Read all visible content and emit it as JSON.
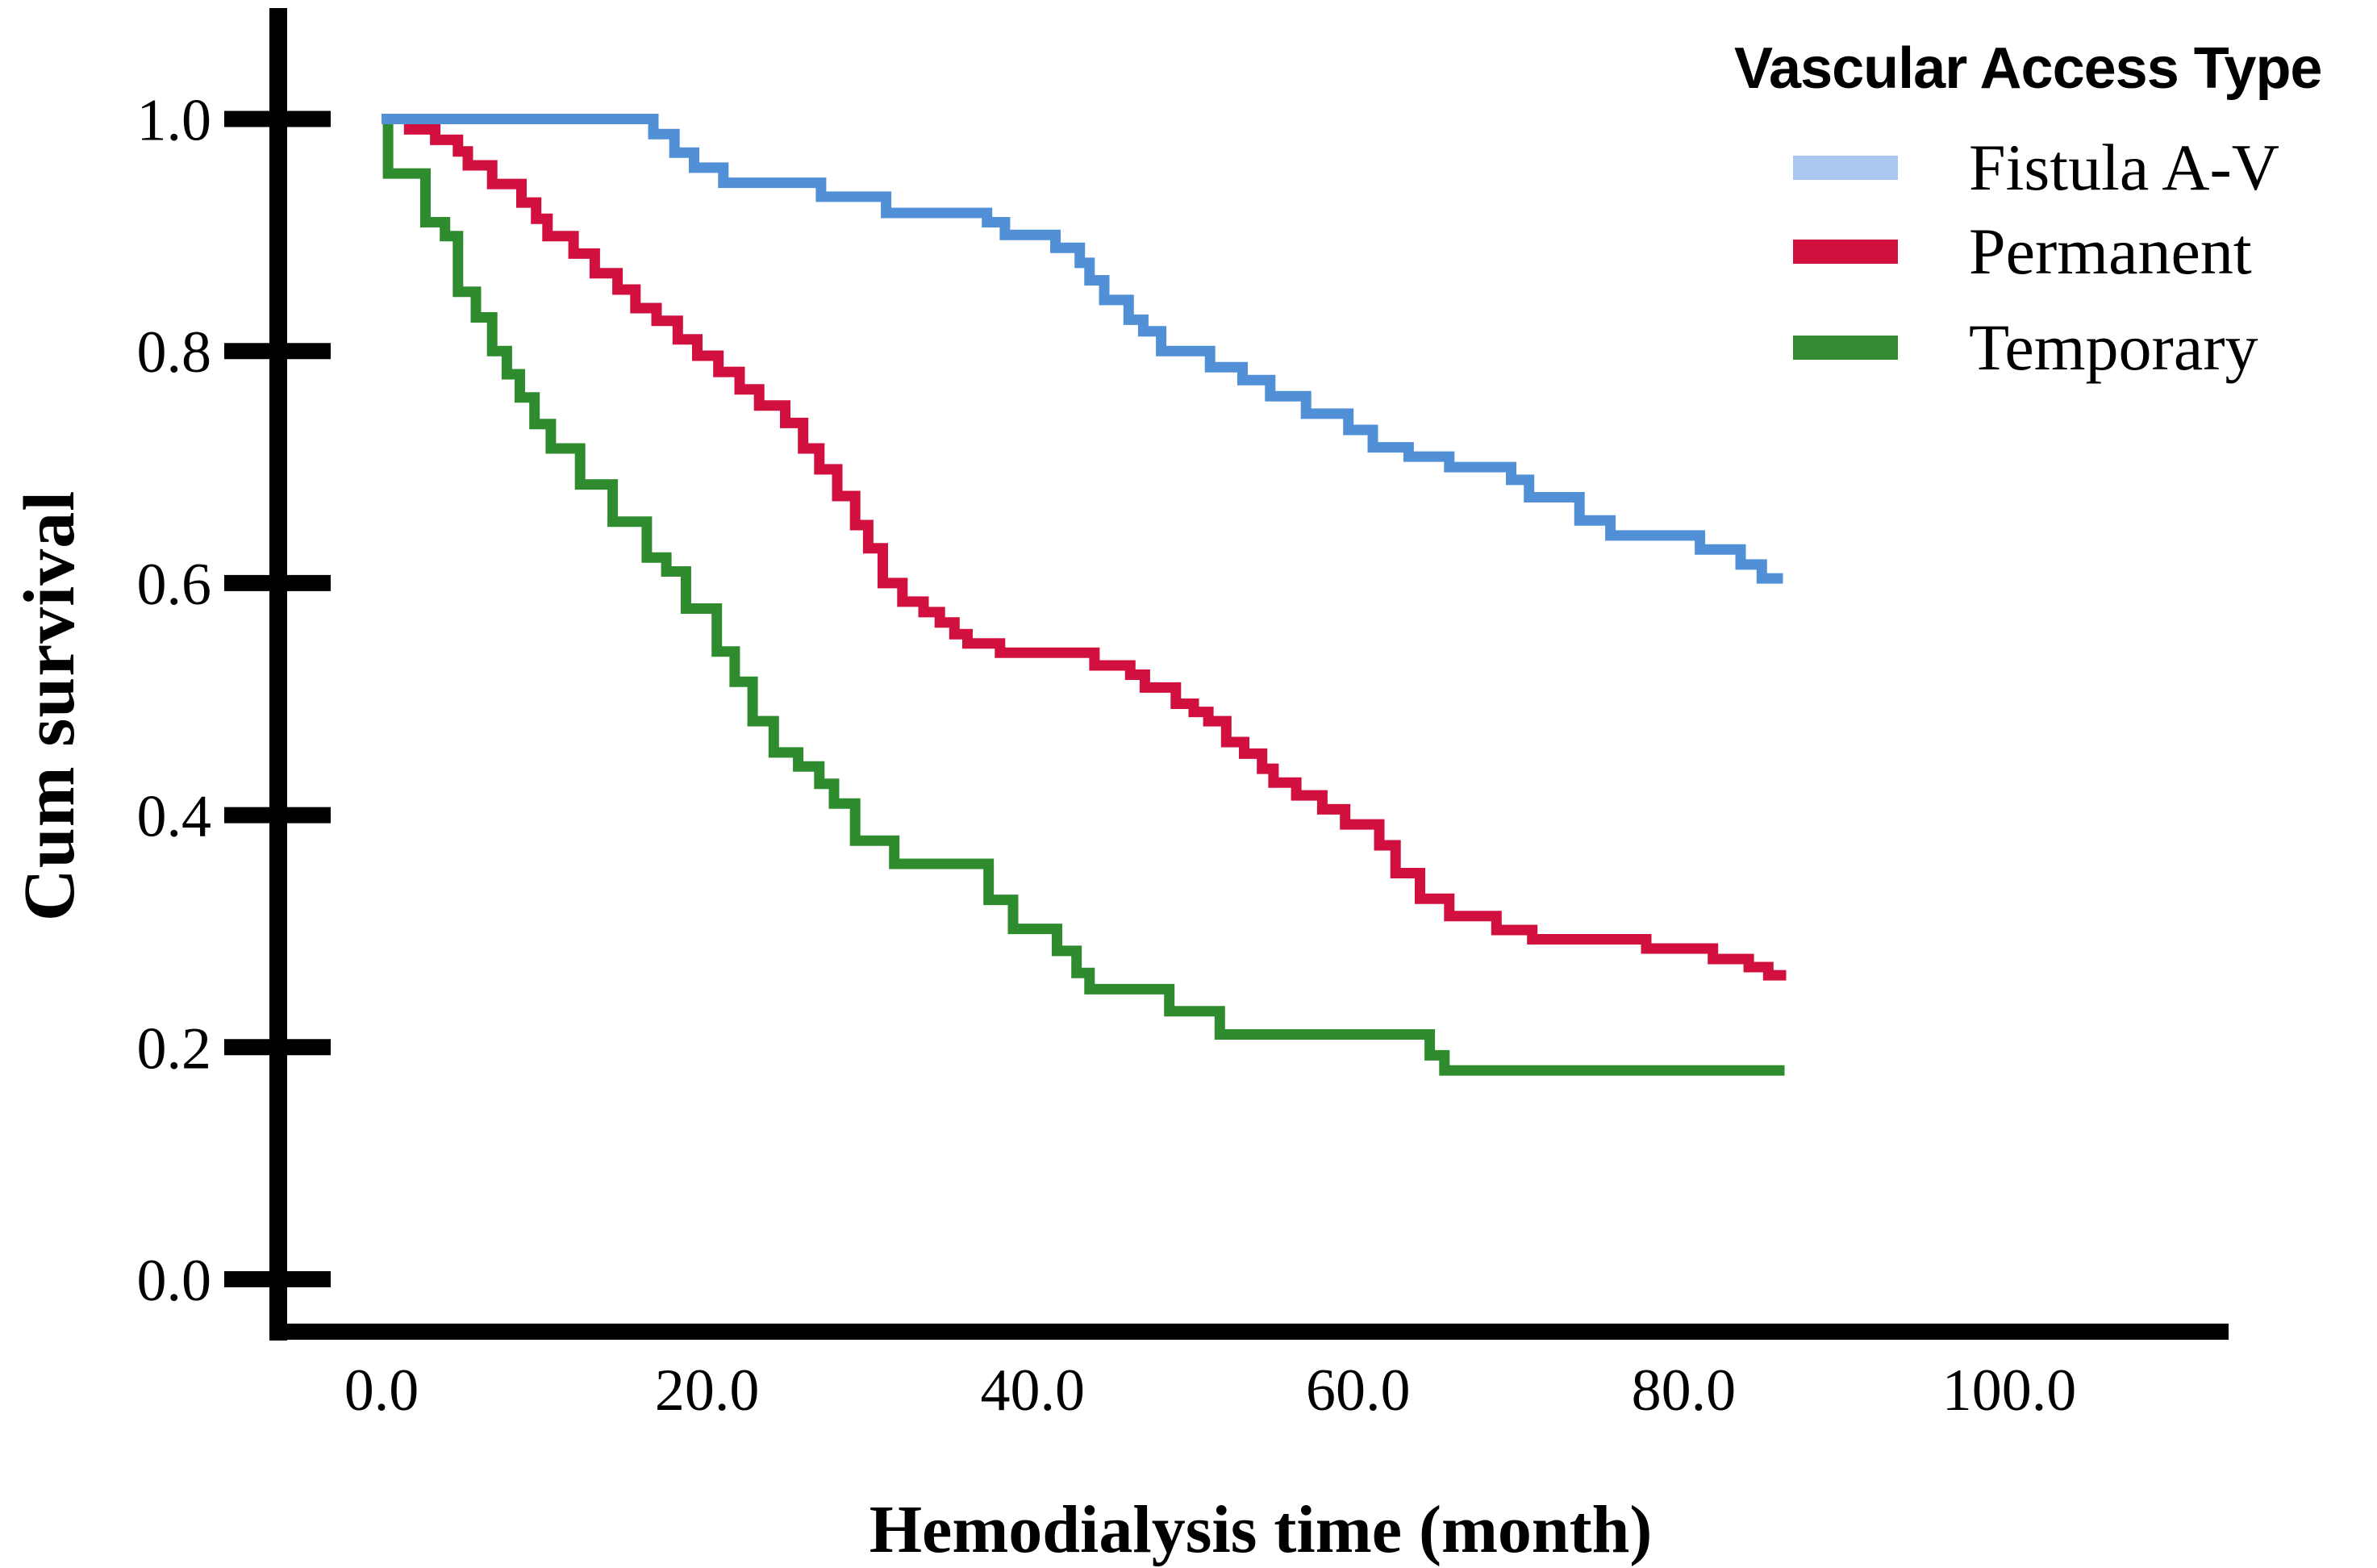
{
  "figure": {
    "background": "#ffffff",
    "legend": {
      "title": "Vascular Access Type",
      "entries": [
        {
          "label": "Fistula A-V",
          "swatch_color": "#a8c8ef"
        },
        {
          "label": "Permanent",
          "swatch_color": "#d0103e"
        },
        {
          "label": "Temporary",
          "swatch_color": "#338a33"
        }
      ]
    }
  },
  "chart_data": {
    "type": "line",
    "subtype": "kaplan-meier-step",
    "title": "",
    "xlabel": "Hemodialysis time (month)",
    "ylabel": "Cum survival",
    "xlim": [
      0,
      100
    ],
    "ylim": [
      0.0,
      1.0
    ],
    "grid": false,
    "legend_position": "top-right",
    "x_ticks": [
      {
        "value": 0,
        "label": "0.0"
      },
      {
        "value": 20,
        "label": "20.0"
      },
      {
        "value": 40,
        "label": "40.0"
      },
      {
        "value": 60,
        "label": "60.0"
      },
      {
        "value": 80,
        "label": "80.0"
      },
      {
        "value": 100,
        "label": "100.0"
      }
    ],
    "y_ticks": [
      {
        "value": 1.0,
        "label": "1.0"
      },
      {
        "value": 0.8,
        "label": "0.8"
      },
      {
        "value": 0.6,
        "label": "0.6"
      },
      {
        "value": 0.4,
        "label": "0.4"
      },
      {
        "value": 0.2,
        "label": "0.2"
      },
      {
        "value": 0.0,
        "label": "0.0"
      }
    ],
    "series": [
      {
        "id": "temporary",
        "name": "Temporary",
        "color": "#2e8b2e",
        "points": [
          [
            0,
            1.0
          ],
          [
            0.4,
            0.953
          ],
          [
            2.7,
            0.911
          ],
          [
            3.9,
            0.899
          ],
          [
            4.7,
            0.851
          ],
          [
            5.8,
            0.829
          ],
          [
            6.8,
            0.8
          ],
          [
            7.7,
            0.78
          ],
          [
            8.5,
            0.76
          ],
          [
            9.4,
            0.737
          ],
          [
            10.4,
            0.716
          ],
          [
            12.2,
            0.685
          ],
          [
            14.2,
            0.653
          ],
          [
            16.3,
            0.622
          ],
          [
            17.5,
            0.61
          ],
          [
            18.7,
            0.578
          ],
          [
            20.6,
            0.541
          ],
          [
            21.7,
            0.515
          ],
          [
            22.8,
            0.481
          ],
          [
            24.1,
            0.454
          ],
          [
            25.6,
            0.442
          ],
          [
            26.9,
            0.427
          ],
          [
            27.8,
            0.41
          ],
          [
            29.1,
            0.378
          ],
          [
            31.5,
            0.358
          ],
          [
            37.3,
            0.327
          ],
          [
            38.8,
            0.302
          ],
          [
            41.5,
            0.283
          ],
          [
            42.7,
            0.264
          ],
          [
            43.5,
            0.25
          ],
          [
            48.4,
            0.231
          ],
          [
            51.5,
            0.211
          ],
          [
            64.4,
            0.193
          ],
          [
            65.3,
            0.18
          ],
          [
            86.2,
            0.18
          ]
        ]
      },
      {
        "id": "permanent",
        "name": "Permanent",
        "color": "#d2103f",
        "points": [
          [
            0,
            1.0
          ],
          [
            1.7,
            0.991
          ],
          [
            3.3,
            0.982
          ],
          [
            4.7,
            0.972
          ],
          [
            5.3,
            0.96
          ],
          [
            6.8,
            0.944
          ],
          [
            8.6,
            0.928
          ],
          [
            9.5,
            0.914
          ],
          [
            10.2,
            0.899
          ],
          [
            11.8,
            0.884
          ],
          [
            13.1,
            0.867
          ],
          [
            14.5,
            0.853
          ],
          [
            15.6,
            0.837
          ],
          [
            16.9,
            0.826
          ],
          [
            18.2,
            0.81
          ],
          [
            19.4,
            0.796
          ],
          [
            20.7,
            0.782
          ],
          [
            22,
            0.767
          ],
          [
            23.2,
            0.753
          ],
          [
            24.8,
            0.738
          ],
          [
            25.9,
            0.716
          ],
          [
            26.9,
            0.698
          ],
          [
            28,
            0.675
          ],
          [
            29.1,
            0.65
          ],
          [
            29.9,
            0.63
          ],
          [
            30.8,
            0.6
          ],
          [
            32,
            0.584
          ],
          [
            33.3,
            0.575
          ],
          [
            34.3,
            0.566
          ],
          [
            35.2,
            0.556
          ],
          [
            36,
            0.548
          ],
          [
            38,
            0.54
          ],
          [
            43.8,
            0.529
          ],
          [
            46,
            0.521
          ],
          [
            46.9,
            0.51
          ],
          [
            48.8,
            0.496
          ],
          [
            49.9,
            0.489
          ],
          [
            50.8,
            0.481
          ],
          [
            51.9,
            0.463
          ],
          [
            53,
            0.453
          ],
          [
            54.1,
            0.44
          ],
          [
            54.8,
            0.428
          ],
          [
            56.2,
            0.417
          ],
          [
            57.8,
            0.405
          ],
          [
            59.2,
            0.392
          ],
          [
            61.3,
            0.374
          ],
          [
            62.3,
            0.35
          ],
          [
            63.8,
            0.328
          ],
          [
            65.6,
            0.313
          ],
          [
            68.5,
            0.301
          ],
          [
            70.7,
            0.293
          ],
          [
            77.7,
            0.285
          ],
          [
            81.8,
            0.276
          ],
          [
            84,
            0.269
          ],
          [
            85.2,
            0.262
          ],
          [
            86.3,
            0.262
          ]
        ]
      },
      {
        "id": "fistula-av",
        "name": "Fistula A-V",
        "color": "#5190d7",
        "points": [
          [
            0,
            1.0
          ],
          [
            16.7,
            0.987
          ],
          [
            18,
            0.971
          ],
          [
            19.2,
            0.958
          ],
          [
            21,
            0.945
          ],
          [
            27,
            0.933
          ],
          [
            31,
            0.919
          ],
          [
            37.2,
            0.911
          ],
          [
            38.3,
            0.9
          ],
          [
            41.4,
            0.889
          ],
          [
            42.9,
            0.876
          ],
          [
            43.5,
            0.861
          ],
          [
            44.4,
            0.844
          ],
          [
            45.9,
            0.827
          ],
          [
            46.8,
            0.817
          ],
          [
            47.9,
            0.8
          ],
          [
            50.9,
            0.786
          ],
          [
            52.9,
            0.775
          ],
          [
            54.6,
            0.761
          ],
          [
            56.8,
            0.746
          ],
          [
            59.4,
            0.732
          ],
          [
            60.9,
            0.717
          ],
          [
            63.1,
            0.709
          ],
          [
            65.6,
            0.7
          ],
          [
            69.4,
            0.689
          ],
          [
            70.5,
            0.674
          ],
          [
            73.6,
            0.654
          ],
          [
            75.5,
            0.641
          ],
          [
            81,
            0.629
          ],
          [
            83.5,
            0.616
          ],
          [
            84.8,
            0.604
          ],
          [
            86.1,
            0.604
          ]
        ]
      }
    ]
  }
}
